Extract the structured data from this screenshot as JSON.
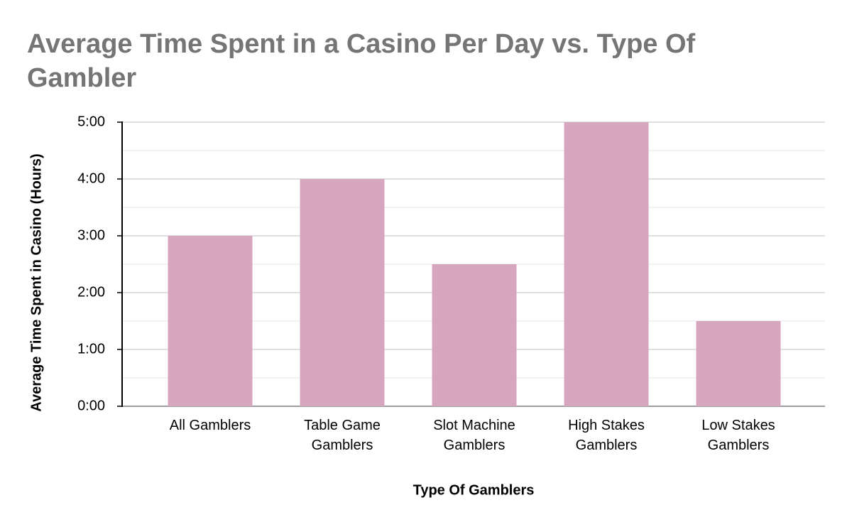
{
  "chart_data": {
    "type": "bar",
    "title": "Average Time Spent in a Casino Per Day vs. Type Of Gambler",
    "x_label": "Type Of Gamblers",
    "y_label": "Average Time Spent in Casino (Hours)",
    "categories": [
      "All Gamblers",
      "Table Game Gamblers",
      "Slot Machine Gamblers",
      "High Stakes Gamblers",
      "Low Stakes Gamblers"
    ],
    "values": [
      3,
      4,
      2.5,
      5,
      1.5
    ],
    "color": "#d5a6bd",
    "ylim": [
      0,
      5
    ],
    "yticks": [
      {
        "value": 0,
        "label": "0:00"
      },
      {
        "value": 1,
        "label": "1:00"
      },
      {
        "value": 2,
        "label": "2:00"
      },
      {
        "value": 3,
        "label": "3:00"
      },
      {
        "value": 4,
        "label": "4:00"
      },
      {
        "value": 5,
        "label": "5:00"
      }
    ],
    "grid": true,
    "minor_grid": true
  }
}
